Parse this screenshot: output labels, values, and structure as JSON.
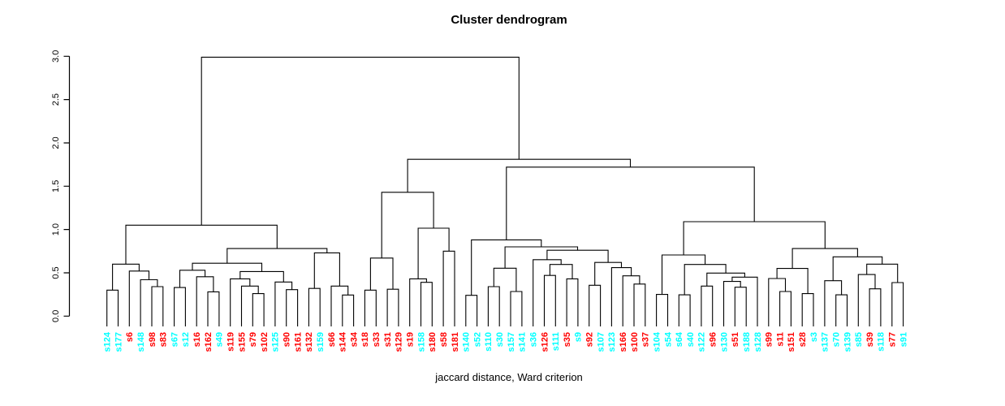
{
  "chart_data": {
    "type": "dendrogram",
    "title": "Cluster dendrogram",
    "xlabel": "jaccard distance, Ward criterion",
    "ylim": [
      0.0,
      3.0
    ],
    "y_ticks": [
      "0.0",
      "0.5",
      "1.0",
      "1.5",
      "2.0",
      "2.5",
      "3.0"
    ],
    "y_tick_values": [
      0.0,
      0.5,
      1.0,
      1.5,
      2.0,
      2.5,
      3.0
    ],
    "grid": false,
    "legend": false,
    "line_color": "#000000",
    "label_palette": {
      "red": "#FF0000",
      "cyan": "#00FFFF"
    },
    "leaves": [
      {
        "label": "s124",
        "color": "cyan"
      },
      {
        "label": "s177",
        "color": "cyan"
      },
      {
        "label": "s6",
        "color": "red"
      },
      {
        "label": "s148",
        "color": "cyan"
      },
      {
        "label": "s98",
        "color": "red"
      },
      {
        "label": "s83",
        "color": "red"
      },
      {
        "label": "s67",
        "color": "cyan"
      },
      {
        "label": "s12",
        "color": "cyan"
      },
      {
        "label": "s16",
        "color": "red"
      },
      {
        "label": "s162",
        "color": "red"
      },
      {
        "label": "s49",
        "color": "cyan"
      },
      {
        "label": "s119",
        "color": "red"
      },
      {
        "label": "s155",
        "color": "red"
      },
      {
        "label": "s79",
        "color": "red"
      },
      {
        "label": "s102",
        "color": "red"
      },
      {
        "label": "s125",
        "color": "cyan"
      },
      {
        "label": "s90",
        "color": "red"
      },
      {
        "label": "s161",
        "color": "red"
      },
      {
        "label": "s132",
        "color": "red"
      },
      {
        "label": "s159",
        "color": "cyan"
      },
      {
        "label": "s66",
        "color": "red"
      },
      {
        "label": "s144",
        "color": "red"
      },
      {
        "label": "s34",
        "color": "red"
      },
      {
        "label": "s18",
        "color": "red"
      },
      {
        "label": "s33",
        "color": "red"
      },
      {
        "label": "s31",
        "color": "red"
      },
      {
        "label": "s129",
        "color": "red"
      },
      {
        "label": "s19",
        "color": "red"
      },
      {
        "label": "s158",
        "color": "cyan"
      },
      {
        "label": "s180",
        "color": "red"
      },
      {
        "label": "s58",
        "color": "red"
      },
      {
        "label": "s181",
        "color": "red"
      },
      {
        "label": "s140",
        "color": "cyan"
      },
      {
        "label": "s52",
        "color": "cyan"
      },
      {
        "label": "s110",
        "color": "cyan"
      },
      {
        "label": "s30",
        "color": "cyan"
      },
      {
        "label": "s157",
        "color": "cyan"
      },
      {
        "label": "s141",
        "color": "cyan"
      },
      {
        "label": "s36",
        "color": "cyan"
      },
      {
        "label": "s126",
        "color": "red"
      },
      {
        "label": "s111",
        "color": "cyan"
      },
      {
        "label": "s35",
        "color": "red"
      },
      {
        "label": "s9",
        "color": "cyan"
      },
      {
        "label": "s92",
        "color": "red"
      },
      {
        "label": "s107",
        "color": "cyan"
      },
      {
        "label": "s123",
        "color": "cyan"
      },
      {
        "label": "s166",
        "color": "red"
      },
      {
        "label": "s100",
        "color": "red"
      },
      {
        "label": "s37",
        "color": "red"
      },
      {
        "label": "s104",
        "color": "cyan"
      },
      {
        "label": "s54",
        "color": "cyan"
      },
      {
        "label": "s64",
        "color": "cyan"
      },
      {
        "label": "s40",
        "color": "cyan"
      },
      {
        "label": "s122",
        "color": "cyan"
      },
      {
        "label": "s96",
        "color": "red"
      },
      {
        "label": "s130",
        "color": "cyan"
      },
      {
        "label": "s51",
        "color": "red"
      },
      {
        "label": "s188",
        "color": "cyan"
      },
      {
        "label": "s128",
        "color": "cyan"
      },
      {
        "label": "s99",
        "color": "red"
      },
      {
        "label": "s11",
        "color": "red"
      },
      {
        "label": "s151",
        "color": "red"
      },
      {
        "label": "s28",
        "color": "red"
      },
      {
        "label": "s3",
        "color": "cyan"
      },
      {
        "label": "s137",
        "color": "cyan"
      },
      {
        "label": "s70",
        "color": "cyan"
      },
      {
        "label": "s139",
        "color": "cyan"
      },
      {
        "label": "s85",
        "color": "cyan"
      },
      {
        "label": "s39",
        "color": "red"
      },
      {
        "label": "s118",
        "color": "cyan"
      },
      {
        "label": "s77",
        "color": "red"
      },
      {
        "label": "s91",
        "color": "cyan"
      }
    ],
    "merge_tree": {
      "h": 2.99,
      "c": [
        {
          "h": 1.05,
          "c": [
            {
              "h": 0.6,
              "c": [
                {
                  "h": 0.3,
                  "c": [
                    "s124",
                    "s177"
                  ]
                },
                {
                  "h": 0.52,
                  "c": [
                    "s6",
                    {
                      "h": 0.42,
                      "c": [
                        "s148",
                        {
                          "h": 0.34,
                          "c": [
                            "s98",
                            "s83"
                          ]
                        }
                      ]
                    }
                  ]
                }
              ]
            },
            {
              "h": 0.78,
              "c": [
                {
                  "h": 0.61,
                  "c": [
                    {
                      "h": 0.53,
                      "c": [
                        {
                          "h": 0.33,
                          "c": [
                            "s67",
                            "s12"
                          ]
                        },
                        {
                          "h": 0.455,
                          "c": [
                            "s16",
                            {
                              "h": 0.28,
                              "c": [
                                "s162",
                                "s49"
                              ]
                            }
                          ]
                        }
                      ]
                    },
                    {
                      "h": 0.515,
                      "c": [
                        {
                          "h": 0.43,
                          "c": [
                            "s119",
                            {
                              "h": 0.347,
                              "c": [
                                "s155",
                                {
                                  "h": 0.26,
                                  "c": [
                                    "s79",
                                    "s102"
                                  ]
                                }
                              ]
                            }
                          ]
                        },
                        {
                          "h": 0.394,
                          "c": [
                            "s125",
                            {
                              "h": 0.306,
                              "c": [
                                "s90",
                                "s161"
                              ]
                            }
                          ]
                        }
                      ]
                    }
                  ]
                },
                {
                  "h": 0.73,
                  "c": [
                    {
                      "h": 0.32,
                      "c": [
                        "s132",
                        "s159"
                      ]
                    },
                    {
                      "h": 0.347,
                      "c": [
                        "s66",
                        {
                          "h": 0.244,
                          "c": [
                            "s144",
                            "s34"
                          ]
                        }
                      ]
                    }
                  ]
                }
              ]
            }
          ]
        },
        {
          "h": 1.81,
          "c": [
            {
              "h": 1.43,
              "c": [
                {
                  "h": 0.67,
                  "c": [
                    {
                      "h": 0.3,
                      "c": [
                        "s18",
                        "s33"
                      ]
                    },
                    {
                      "h": 0.31,
                      "c": [
                        "s31",
                        "s129"
                      ]
                    }
                  ]
                },
                {
                  "h": 1.015,
                  "c": [
                    {
                      "h": 0.43,
                      "c": [
                        "s19",
                        {
                          "h": 0.39,
                          "c": [
                            "s158",
                            "s180"
                          ]
                        }
                      ]
                    },
                    {
                      "h": 0.75,
                      "c": [
                        "s58",
                        "s181"
                      ]
                    }
                  ]
                }
              ]
            },
            {
              "h": 1.72,
              "c": [
                {
                  "h": 0.88,
                  "c": [
                    {
                      "h": 0.24,
                      "c": [
                        "s140",
                        "s52"
                      ]
                    },
                    {
                      "h": 0.8,
                      "c": [
                        {
                          "h": 0.553,
                          "c": [
                            {
                              "h": 0.34,
                              "c": [
                                "s110",
                                "s30"
                              ]
                            },
                            {
                              "h": 0.284,
                              "c": [
                                "s157",
                                "s141"
                              ]
                            }
                          ]
                        },
                        {
                          "h": 0.76,
                          "c": [
                            {
                              "h": 0.652,
                              "c": [
                                "s36",
                                {
                                  "h": 0.596,
                                  "c": [
                                    {
                                      "h": 0.47,
                                      "c": [
                                        "s126",
                                        "s111"
                                      ]
                                    },
                                    {
                                      "h": 0.43,
                                      "c": [
                                        "s35",
                                        "s9"
                                      ]
                                    }
                                  ]
                                }
                              ]
                            },
                            {
                              "h": 0.62,
                              "c": [
                                {
                                  "h": 0.356,
                                  "c": [
                                    "s92",
                                    "s107"
                                  ]
                                },
                                {
                                  "h": 0.56,
                                  "c": [
                                    "s123",
                                    {
                                      "h": 0.465,
                                      "c": [
                                        "s166",
                                        {
                                          "h": 0.37,
                                          "c": [
                                            "s100",
                                            "s37"
                                          ]
                                        }
                                      ]
                                    }
                                  ]
                                }
                              ]
                            }
                          ]
                        }
                      ]
                    }
                  ]
                },
                {
                  "h": 1.09,
                  "c": [
                    {
                      "h": 0.706,
                      "c": [
                        {
                          "h": 0.25,
                          "c": [
                            "s104",
                            "s54"
                          ]
                        },
                        {
                          "h": 0.596,
                          "c": [
                            {
                              "h": 0.246,
                              "c": [
                                "s64",
                                "s40"
                              ]
                            },
                            {
                              "h": 0.497,
                              "c": [
                                {
                                  "h": 0.347,
                                  "c": [
                                    "s122",
                                    "s96"
                                  ]
                                },
                                {
                                  "h": 0.45,
                                  "c": [
                                    {
                                      "h": 0.4,
                                      "c": [
                                        "s130",
                                        {
                                          "h": 0.334,
                                          "c": [
                                            "s51",
                                            "s188"
                                          ]
                                        }
                                      ]
                                    },
                                    "s128"
                                  ]
                                }
                              ]
                            }
                          ]
                        }
                      ]
                    },
                    {
                      "h": 0.78,
                      "c": [
                        {
                          "h": 0.55,
                          "c": [
                            {
                              "h": 0.434,
                              "c": [
                                "s99",
                                {
                                  "h": 0.284,
                                  "c": [
                                    "s11",
                                    "s151"
                                  ]
                                }
                              ]
                            },
                            {
                              "h": 0.26,
                              "c": [
                                "s28",
                                "s3"
                              ]
                            }
                          ]
                        },
                        {
                          "h": 0.684,
                          "c": [
                            {
                              "h": 0.409,
                              "c": [
                                "s137",
                                {
                                  "h": 0.246,
                                  "c": [
                                    "s70",
                                    "s139"
                                  ]
                                }
                              ]
                            },
                            {
                              "h": 0.6,
                              "c": [
                                {
                                  "h": 0.48,
                                  "c": [
                                    "s85",
                                    {
                                      "h": 0.315,
                                      "c": [
                                        "s39",
                                        "s118"
                                      ]
                                    }
                                  ]
                                },
                                {
                                  "h": 0.387,
                                  "c": [
                                    "s77",
                                    "s91"
                                  ]
                                }
                              ]
                            }
                          ]
                        }
                      ]
                    }
                  ]
                }
              ]
            }
          ]
        }
      ]
    }
  }
}
